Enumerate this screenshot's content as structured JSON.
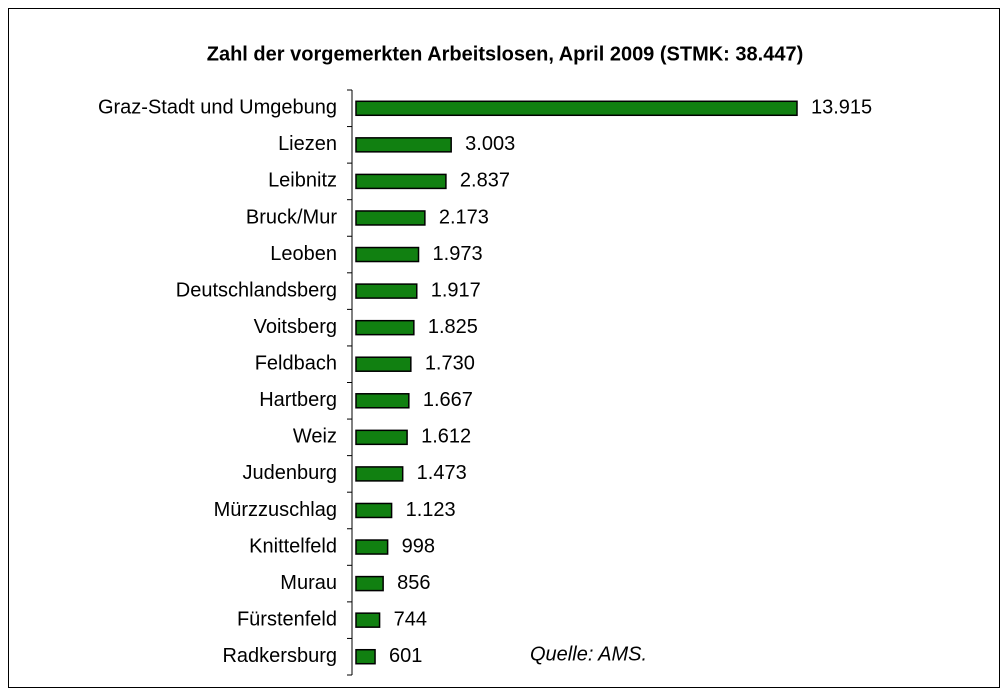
{
  "chart_data": {
    "type": "bar",
    "orientation": "horizontal",
    "title": "Zahl der vorgemerkten Arbeitslosen, April 2009 (STMK: 38.447)",
    "categories": [
      "Graz-Stadt und Umgebung",
      "Liezen",
      "Leibnitz",
      "Bruck/Mur",
      "Leoben",
      "Deutschlandsberg",
      "Voitsberg",
      "Feldbach",
      "Hartberg",
      "Weiz",
      "Judenburg",
      "Mürzzuschlag",
      "Knittelfeld",
      "Murau",
      "Fürstenfeld",
      "Radkersburg"
    ],
    "values": [
      13915,
      3003,
      2837,
      2173,
      1973,
      1917,
      1825,
      1730,
      1667,
      1612,
      1473,
      1123,
      998,
      856,
      744,
      601
    ],
    "value_labels": [
      "13.915",
      "3.003",
      "2.837",
      "2.173",
      "1.973",
      "1.917",
      "1.825",
      "1.730",
      "1.667",
      "1.612",
      "1.473",
      "1.123",
      "998",
      "856",
      "744",
      "601"
    ],
    "color": "#118011",
    "annotation": "Quelle: AMS."
  }
}
